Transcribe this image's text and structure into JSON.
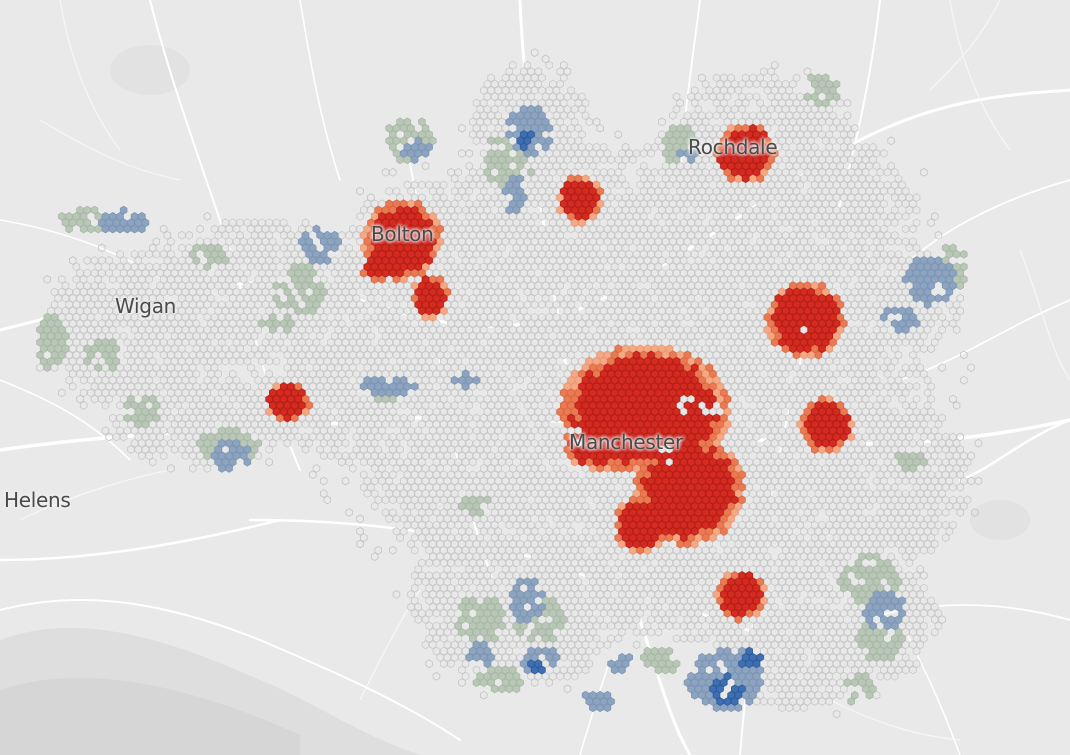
{
  "map": {
    "places": {
      "rochdale": "Rochdale",
      "bolton": "Bolton",
      "wigan": "Wigan",
      "manchester": "Manchester",
      "st_helens": "St Helens"
    },
    "colors": {
      "background": "#e9e9e9",
      "road": "#ffffff",
      "water": "#d9d9d9",
      "hex_neutral": "#dcdcdc",
      "hex_green": "#b9c7b7",
      "hex_blue_light": "#8ca4c0",
      "hex_blue_dark": "#3f6fb3",
      "hex_orange_light": "#f4a883",
      "hex_orange": "#eb7a52",
      "hex_red": "#d42a20"
    }
  }
}
